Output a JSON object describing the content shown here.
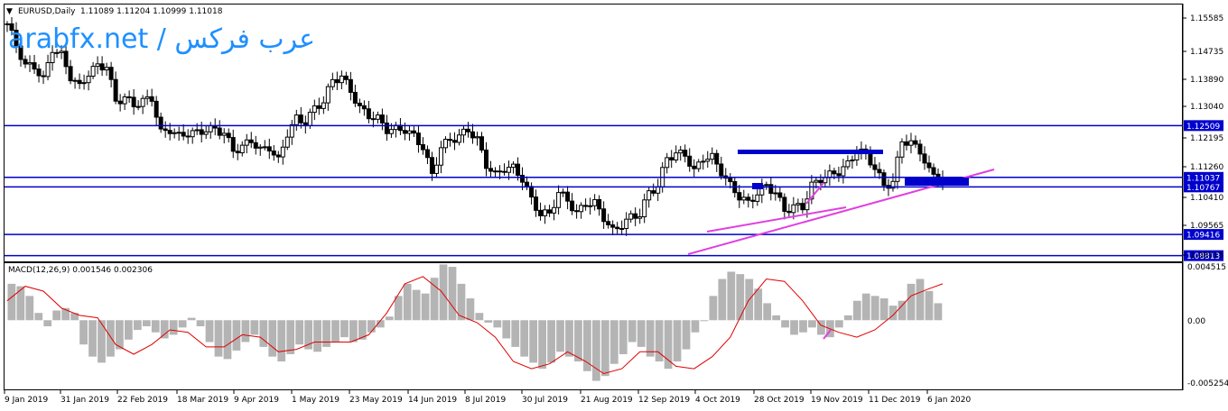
{
  "window": {
    "symbol_header": "EURUSD,Daily",
    "ohlc": "1.11089 1.11204 1.10999 1.11018",
    "watermark": "arabfx.net / عرب فركس"
  },
  "colors": {
    "candle": "#000000",
    "hline": "#0000cc",
    "macd_hist": "#b4b4b4",
    "macd_signal": "#e00000",
    "trendline": "#e040e0",
    "label_bg": "#0000cc",
    "label_text": "#ffffff"
  },
  "chart_data": [
    {
      "type": "candlestick",
      "title": "EURUSD,Daily",
      "ohlc_last": [
        1.11089,
        1.11204,
        1.10999,
        1.11018
      ],
      "x_tick_labels": [
        "9 Jan 2019",
        "31 Jan 2019",
        "22 Feb 2019",
        "18 Mar 2019",
        "9 Apr 2019",
        "1 May 2019",
        "23 May 2019",
        "14 Jun 2019",
        "8 Jul 2019",
        "30 Jul 2019",
        "21 Aug 2019",
        "12 Sep 2019",
        "4 Oct 2019",
        "28 Oct 2019",
        "19 Nov 2019",
        "11 Dec 2019",
        "6 Jan 2020"
      ],
      "y_tick_labels": [
        "1.15585",
        "1.14735",
        "1.13890",
        "1.13040",
        "1.12195",
        "1.11260",
        "1.10410",
        "1.09565",
        "1.08715"
      ],
      "ylim": [
        1.0865,
        1.1595
      ],
      "close_path": [
        [
          0,
          1.154
        ],
        [
          2,
          1.148
        ],
        [
          4,
          1.142
        ],
        [
          6,
          1.142
        ],
        [
          8,
          1.138
        ],
        [
          10,
          1.147
        ],
        [
          12,
          1.145
        ],
        [
          14,
          1.139
        ],
        [
          16,
          1.136
        ],
        [
          18,
          1.14
        ],
        [
          20,
          1.142
        ],
        [
          22,
          1.142
        ],
        [
          24,
          1.132
        ],
        [
          26,
          1.133
        ],
        [
          28,
          1.131
        ],
        [
          30,
          1.132
        ],
        [
          32,
          1.133
        ],
        [
          34,
          1.123
        ],
        [
          36,
          1.124
        ],
        [
          38,
          1.122
        ],
        [
          40,
          1.123
        ],
        [
          42,
          1.123
        ],
        [
          44,
          1.124
        ],
        [
          46,
          1.124
        ],
        [
          48,
          1.123
        ],
        [
          50,
          1.118
        ],
        [
          52,
          1.119
        ],
        [
          54,
          1.121
        ],
        [
          56,
          1.118
        ],
        [
          58,
          1.119
        ],
        [
          60,
          1.115
        ],
        [
          62,
          1.123
        ],
        [
          64,
          1.127
        ],
        [
          66,
          1.126
        ],
        [
          68,
          1.13
        ],
        [
          70,
          1.132
        ],
        [
          72,
          1.138
        ],
        [
          74,
          1.139
        ],
        [
          76,
          1.135
        ],
        [
          78,
          1.13
        ],
        [
          80,
          1.128
        ],
        [
          82,
          1.127
        ],
        [
          84,
          1.124
        ],
        [
          86,
          1.124
        ],
        [
          88,
          1.124
        ],
        [
          90,
          1.122
        ],
        [
          92,
          1.119
        ],
        [
          94,
          1.111
        ],
        [
          96,
          1.119
        ],
        [
          98,
          1.121
        ],
        [
          100,
          1.122
        ],
        [
          102,
          1.124
        ],
        [
          104,
          1.121
        ],
        [
          106,
          1.114
        ],
        [
          108,
          1.111
        ],
        [
          110,
          1.113
        ],
        [
          112,
          1.113
        ],
        [
          114,
          1.11
        ],
        [
          116,
          1.104
        ],
        [
          118,
          1.1
        ],
        [
          120,
          1.1
        ],
        [
          122,
          1.106
        ],
        [
          124,
          1.104
        ],
        [
          126,
          1.1
        ],
        [
          128,
          1.103
        ],
        [
          130,
          1.103
        ],
        [
          132,
          1.099
        ],
        [
          134,
          1.095
        ],
        [
          136,
          1.097
        ],
        [
          138,
          1.099
        ],
        [
          140,
          1.1
        ],
        [
          142,
          1.106
        ],
        [
          144,
          1.108
        ],
        [
          146,
          1.116
        ],
        [
          148,
          1.117
        ],
        [
          150,
          1.117
        ],
        [
          152,
          1.112
        ],
        [
          154,
          1.116
        ],
        [
          156,
          1.116
        ],
        [
          158,
          1.112
        ],
        [
          160,
          1.108
        ],
        [
          162,
          1.105
        ],
        [
          164,
          1.103
        ],
        [
          166,
          1.106
        ],
        [
          168,
          1.108
        ],
        [
          170,
          1.106
        ],
        [
          172,
          1.101
        ],
        [
          174,
          1.102
        ],
        [
          176,
          1.102
        ],
        [
          178,
          1.108
        ],
        [
          180,
          1.11
        ],
        [
          182,
          1.111
        ],
        [
          184,
          1.112
        ],
        [
          186,
          1.114
        ],
        [
          188,
          1.118
        ],
        [
          190,
          1.117
        ],
        [
          192,
          1.113
        ],
        [
          194,
          1.108
        ],
        [
          196,
          1.109
        ],
        [
          198,
          1.121
        ],
        [
          200,
          1.12
        ],
        [
          202,
          1.118
        ],
        [
          204,
          1.112
        ],
        [
          206,
          1.11
        ]
      ],
      "horizontal_levels": [
        1.12509,
        1.11037,
        1.10767,
        1.09416,
        1.08813
      ],
      "level_labels": [
        "1.12509",
        "1.11037",
        "1.10767",
        "1.09416",
        "1.08813"
      ]
    },
    {
      "type": "bar",
      "title": "MACD(12,26,9) 0.001546 0.002306",
      "y_tick_labels": [
        "0.004515",
        "0.00",
        "-0.005254"
      ],
      "ylim": [
        -0.0057,
        0.0047
      ],
      "histogram": [
        0.003,
        0.0028,
        0.002,
        0.0006,
        -0.0005,
        0.0008,
        0.001,
        0.0006,
        -0.002,
        -0.003,
        -0.0035,
        -0.003,
        -0.0024,
        -0.0016,
        -0.0008,
        -0.0005,
        -0.001,
        -0.0015,
        -0.0012,
        -0.0006,
        0.0002,
        -0.0005,
        -0.0018,
        -0.003,
        -0.0032,
        -0.0025,
        -0.0018,
        -0.0012,
        -0.0022,
        -0.003,
        -0.0034,
        -0.0028,
        -0.002,
        -0.0024,
        -0.0026,
        -0.0022,
        -0.0018,
        -0.0014,
        -0.0018,
        -0.0016,
        -0.001,
        -0.0006,
        0.0003,
        0.002,
        0.003,
        0.0025,
        0.0022,
        0.0035,
        0.0046,
        0.0044,
        0.003,
        0.0018,
        0.0006,
        -0.0002,
        -0.0006,
        -0.0015,
        -0.0022,
        -0.003,
        -0.0035,
        -0.004,
        -0.0035,
        -0.0026,
        -0.003,
        -0.0034,
        -0.0042,
        -0.005,
        -0.0046,
        -0.0036,
        -0.0028,
        -0.0018,
        -0.0022,
        -0.003,
        -0.0034,
        -0.004,
        -0.0034,
        -0.0024,
        -0.001,
        0.0,
        0.002,
        0.0034,
        0.004,
        0.0038,
        0.0034,
        0.0026,
        0.0014,
        0.0004,
        -0.0006,
        -0.0012,
        -0.001,
        -0.0006,
        -0.0012,
        -0.0014,
        -0.0006,
        0.0004,
        0.0016,
        0.0022,
        0.002,
        0.0018,
        0.0012,
        0.0016,
        0.003,
        0.0034,
        0.0024,
        0.0014
      ],
      "signal_path": [
        [
          0,
          0.0016
        ],
        [
          4,
          0.0028
        ],
        [
          8,
          0.0024
        ],
        [
          12,
          0.001
        ],
        [
          16,
          0.0004
        ],
        [
          20,
          0.0002
        ],
        [
          24,
          -0.002
        ],
        [
          28,
          -0.0028
        ],
        [
          32,
          -0.002
        ],
        [
          36,
          -0.0008
        ],
        [
          40,
          -0.001
        ],
        [
          44,
          -0.0022
        ],
        [
          48,
          -0.0022
        ],
        [
          52,
          -0.0012
        ],
        [
          56,
          -0.0014
        ],
        [
          60,
          -0.0026
        ],
        [
          64,
          -0.0024
        ],
        [
          68,
          -0.0018
        ],
        [
          72,
          -0.0018
        ],
        [
          76,
          -0.0018
        ],
        [
          80,
          -0.0012
        ],
        [
          84,
          0.0006
        ],
        [
          88,
          0.003
        ],
        [
          92,
          0.0036
        ],
        [
          96,
          0.0024
        ],
        [
          100,
          0.0004
        ],
        [
          104,
          -0.0002
        ],
        [
          108,
          -0.0014
        ],
        [
          112,
          -0.0034
        ],
        [
          116,
          -0.004
        ],
        [
          120,
          -0.0036
        ],
        [
          124,
          -0.0026
        ],
        [
          128,
          -0.0034
        ],
        [
          132,
          -0.0044
        ],
        [
          136,
          -0.004
        ],
        [
          140,
          -0.0026
        ],
        [
          144,
          -0.0026
        ],
        [
          148,
          -0.0038
        ],
        [
          152,
          -0.004
        ],
        [
          156,
          -0.003
        ],
        [
          160,
          -0.0014
        ],
        [
          164,
          0.0016
        ],
        [
          168,
          0.0034
        ],
        [
          172,
          0.0032
        ],
        [
          176,
          0.0016
        ],
        [
          180,
          -0.0004
        ],
        [
          184,
          -0.001
        ],
        [
          188,
          -0.0014
        ],
        [
          192,
          -0.0008
        ],
        [
          196,
          0.0004
        ],
        [
          200,
          0.002
        ],
        [
          204,
          0.0026
        ],
        [
          207,
          0.003
        ]
      ]
    }
  ]
}
